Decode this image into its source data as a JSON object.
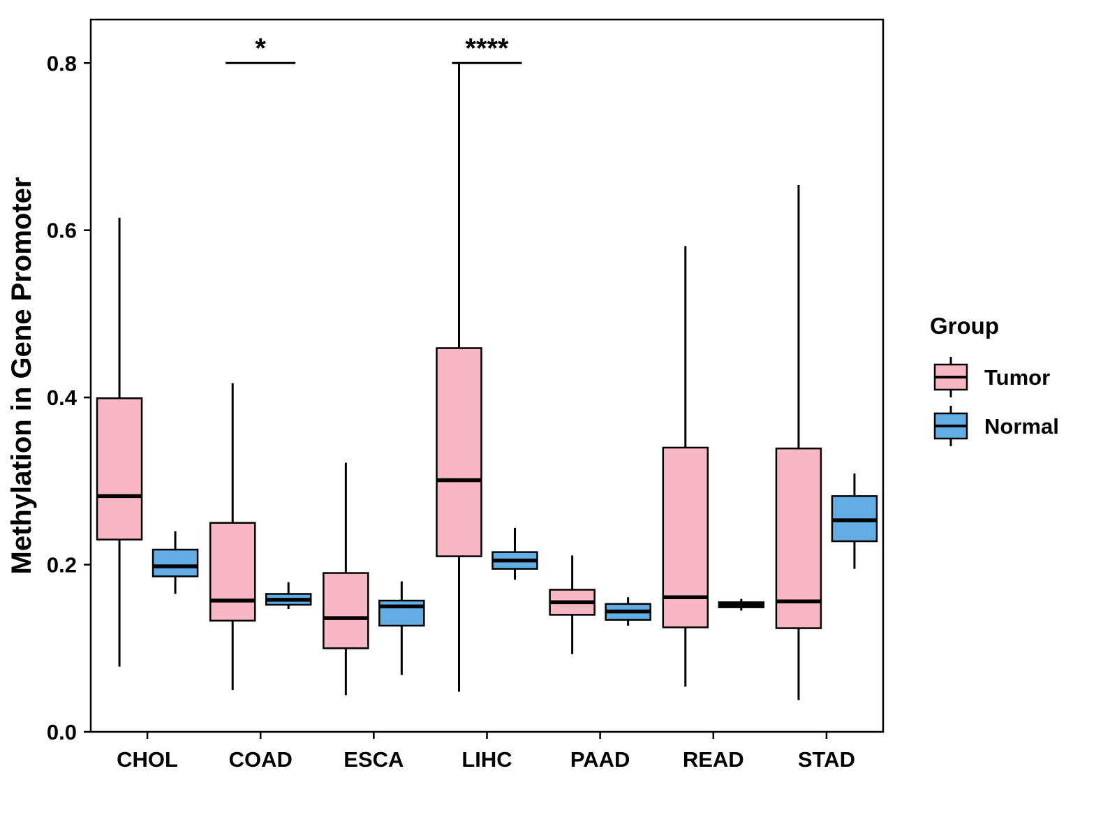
{
  "chart_data": {
    "type": "boxplot",
    "title": "",
    "xlabel": "",
    "ylabel": "Methylation in Gene Promoter",
    "ylim": [
      0,
      0.852
    ],
    "yticks": [
      0.0,
      0.2,
      0.4,
      0.6,
      0.8
    ],
    "grid": false,
    "categories": [
      "CHOL",
      "COAD",
      "ESCA",
      "LIHC",
      "PAAD",
      "READ",
      "STAD"
    ],
    "groups": [
      {
        "name": "Tumor",
        "color": "#F9B7C3"
      },
      {
        "name": "Normal",
        "color": "#62AEE4"
      }
    ],
    "boxes": {
      "Tumor": [
        {
          "category": "CHOL",
          "whisker_low": 0.078,
          "q1": 0.23,
          "median": 0.282,
          "q3": 0.399,
          "whisker_high": 0.615
        },
        {
          "category": "COAD",
          "whisker_low": 0.05,
          "q1": 0.133,
          "median": 0.157,
          "q3": 0.25,
          "whisker_high": 0.417
        },
        {
          "category": "ESCA",
          "whisker_low": 0.044,
          "q1": 0.1,
          "median": 0.136,
          "q3": 0.19,
          "whisker_high": 0.322
        },
        {
          "category": "LIHC",
          "whisker_low": 0.048,
          "q1": 0.21,
          "median": 0.301,
          "q3": 0.459,
          "whisker_high": 0.8
        },
        {
          "category": "PAAD",
          "whisker_low": 0.093,
          "q1": 0.14,
          "median": 0.155,
          "q3": 0.17,
          "whisker_high": 0.211
        },
        {
          "category": "READ",
          "whisker_low": 0.054,
          "q1": 0.125,
          "median": 0.161,
          "q3": 0.34,
          "whisker_high": 0.581
        },
        {
          "category": "STAD",
          "whisker_low": 0.038,
          "q1": 0.124,
          "median": 0.156,
          "q3": 0.339,
          "whisker_high": 0.654
        }
      ],
      "Normal": [
        {
          "category": "CHOL",
          "whisker_low": 0.165,
          "q1": 0.186,
          "median": 0.198,
          "q3": 0.218,
          "whisker_high": 0.24
        },
        {
          "category": "COAD",
          "whisker_low": 0.147,
          "q1": 0.152,
          "median": 0.158,
          "q3": 0.165,
          "whisker_high": 0.179
        },
        {
          "category": "ESCA",
          "whisker_low": 0.068,
          "q1": 0.127,
          "median": 0.15,
          "q3": 0.157,
          "whisker_high": 0.18
        },
        {
          "category": "LIHC",
          "whisker_low": 0.182,
          "q1": 0.195,
          "median": 0.205,
          "q3": 0.215,
          "whisker_high": 0.244
        },
        {
          "category": "PAAD",
          "whisker_low": 0.127,
          "q1": 0.134,
          "median": 0.144,
          "q3": 0.153,
          "whisker_high": 0.161
        },
        {
          "category": "READ",
          "whisker_low": 0.145,
          "q1": 0.149,
          "median": 0.152,
          "q3": 0.155,
          "whisker_high": 0.159
        },
        {
          "category": "STAD",
          "whisker_low": 0.195,
          "q1": 0.228,
          "median": 0.253,
          "q3": 0.282,
          "whisker_high": 0.309
        }
      ]
    },
    "annotations": [
      {
        "category": "COAD",
        "label": "*",
        "y": 0.8
      },
      {
        "category": "LIHC",
        "label": "****",
        "y": 0.8
      }
    ],
    "legend": {
      "title": "Group",
      "entries": [
        "Tumor",
        "Normal"
      ],
      "position": "right"
    },
    "style": {
      "stroke_color": "#000000",
      "panel_background": "#ffffff"
    }
  }
}
